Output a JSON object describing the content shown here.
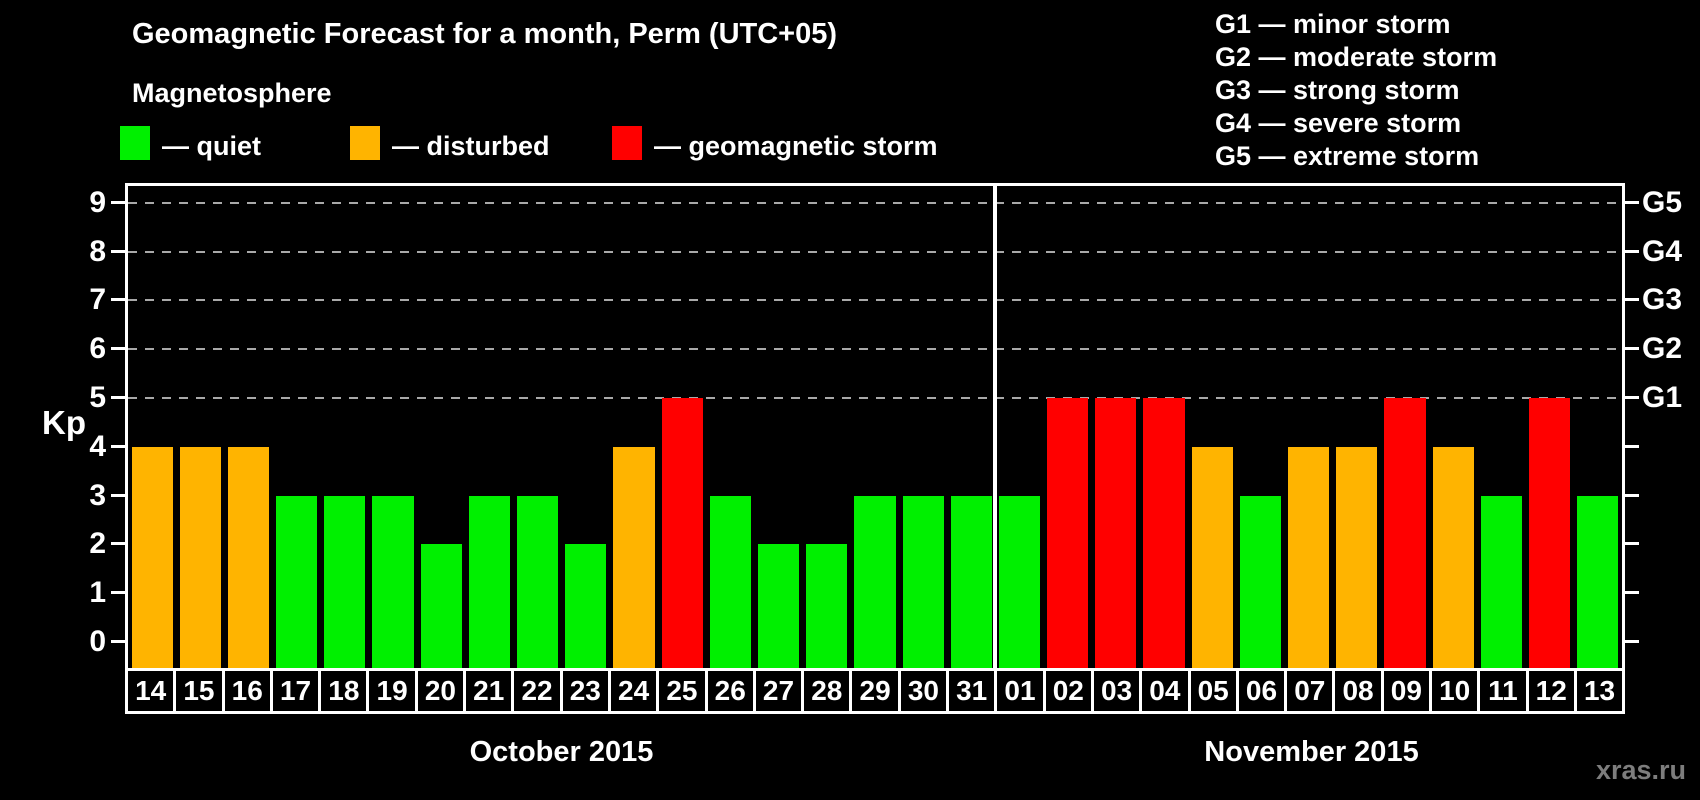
{
  "title": "Geomagnetic Forecast for a month, Perm (UTC+05)",
  "legend": {
    "heading": "Magnetosphere",
    "items": [
      {
        "key": "quiet",
        "label": "— quiet"
      },
      {
        "key": "disturbed",
        "label": "— disturbed"
      },
      {
        "key": "storm",
        "label": "— geomagnetic storm"
      }
    ]
  },
  "g_legend": [
    "G1 — minor storm",
    "G2 — moderate storm",
    "G3 — strong storm",
    "G4 — severe storm",
    "G5 — extreme storm"
  ],
  "watermark": "xras.ru",
  "colors": {
    "quiet": "#00f000",
    "disturbed": "#ffb400",
    "storm": "#ff0000",
    "grid": "#a9a9a9",
    "axis": "#ffffff",
    "watermark": "#7d7d7d"
  },
  "chart_data": {
    "type": "bar",
    "title": "Geomagnetic Forecast for a month, Perm (UTC+05)",
    "ylabel": "Kp",
    "ylim": [
      0,
      9
    ],
    "y_ticks": [
      0,
      1,
      2,
      3,
      4,
      5,
      6,
      7,
      8,
      9
    ],
    "gridlines_at_kp": [
      5,
      6,
      7,
      8,
      9
    ],
    "grid": "dashed, only at storm levels G1–G5",
    "legend_position": "top",
    "right_axis_labels": [
      {
        "label": "G1",
        "kp": 5
      },
      {
        "label": "G2",
        "kp": 6
      },
      {
        "label": "G3",
        "kp": 7
      },
      {
        "label": "G4",
        "kp": 8
      },
      {
        "label": "G5",
        "kp": 9
      }
    ],
    "months": [
      {
        "label": "October 2015",
        "days": [
          {
            "day": "14",
            "kp": 4,
            "condition": "disturbed"
          },
          {
            "day": "15",
            "kp": 4,
            "condition": "disturbed"
          },
          {
            "day": "16",
            "kp": 4,
            "condition": "disturbed"
          },
          {
            "day": "17",
            "kp": 3,
            "condition": "quiet"
          },
          {
            "day": "18",
            "kp": 3,
            "condition": "quiet"
          },
          {
            "day": "19",
            "kp": 3,
            "condition": "quiet"
          },
          {
            "day": "20",
            "kp": 2,
            "condition": "quiet"
          },
          {
            "day": "21",
            "kp": 3,
            "condition": "quiet"
          },
          {
            "day": "22",
            "kp": 3,
            "condition": "quiet"
          },
          {
            "day": "23",
            "kp": 2,
            "condition": "quiet"
          },
          {
            "day": "24",
            "kp": 4,
            "condition": "disturbed"
          },
          {
            "day": "25",
            "kp": 5,
            "condition": "storm"
          },
          {
            "day": "26",
            "kp": 3,
            "condition": "quiet"
          },
          {
            "day": "27",
            "kp": 2,
            "condition": "quiet"
          },
          {
            "day": "28",
            "kp": 2,
            "condition": "quiet"
          },
          {
            "day": "29",
            "kp": 3,
            "condition": "quiet"
          },
          {
            "day": "30",
            "kp": 3,
            "condition": "quiet"
          },
          {
            "day": "31",
            "kp": 3,
            "condition": "quiet"
          }
        ]
      },
      {
        "label": "November 2015",
        "days": [
          {
            "day": "01",
            "kp": 3,
            "condition": "quiet"
          },
          {
            "day": "02",
            "kp": 5,
            "condition": "storm"
          },
          {
            "day": "03",
            "kp": 5,
            "condition": "storm"
          },
          {
            "day": "04",
            "kp": 5,
            "condition": "storm"
          },
          {
            "day": "05",
            "kp": 4,
            "condition": "disturbed"
          },
          {
            "day": "06",
            "kp": 3,
            "condition": "quiet"
          },
          {
            "day": "07",
            "kp": 4,
            "condition": "disturbed"
          },
          {
            "day": "08",
            "kp": 4,
            "condition": "disturbed"
          },
          {
            "day": "09",
            "kp": 5,
            "condition": "storm"
          },
          {
            "day": "10",
            "kp": 4,
            "condition": "disturbed"
          },
          {
            "day": "11",
            "kp": 3,
            "condition": "quiet"
          },
          {
            "day": "12",
            "kp": 5,
            "condition": "storm"
          },
          {
            "day": "13",
            "kp": 3,
            "condition": "quiet"
          }
        ]
      }
    ]
  }
}
